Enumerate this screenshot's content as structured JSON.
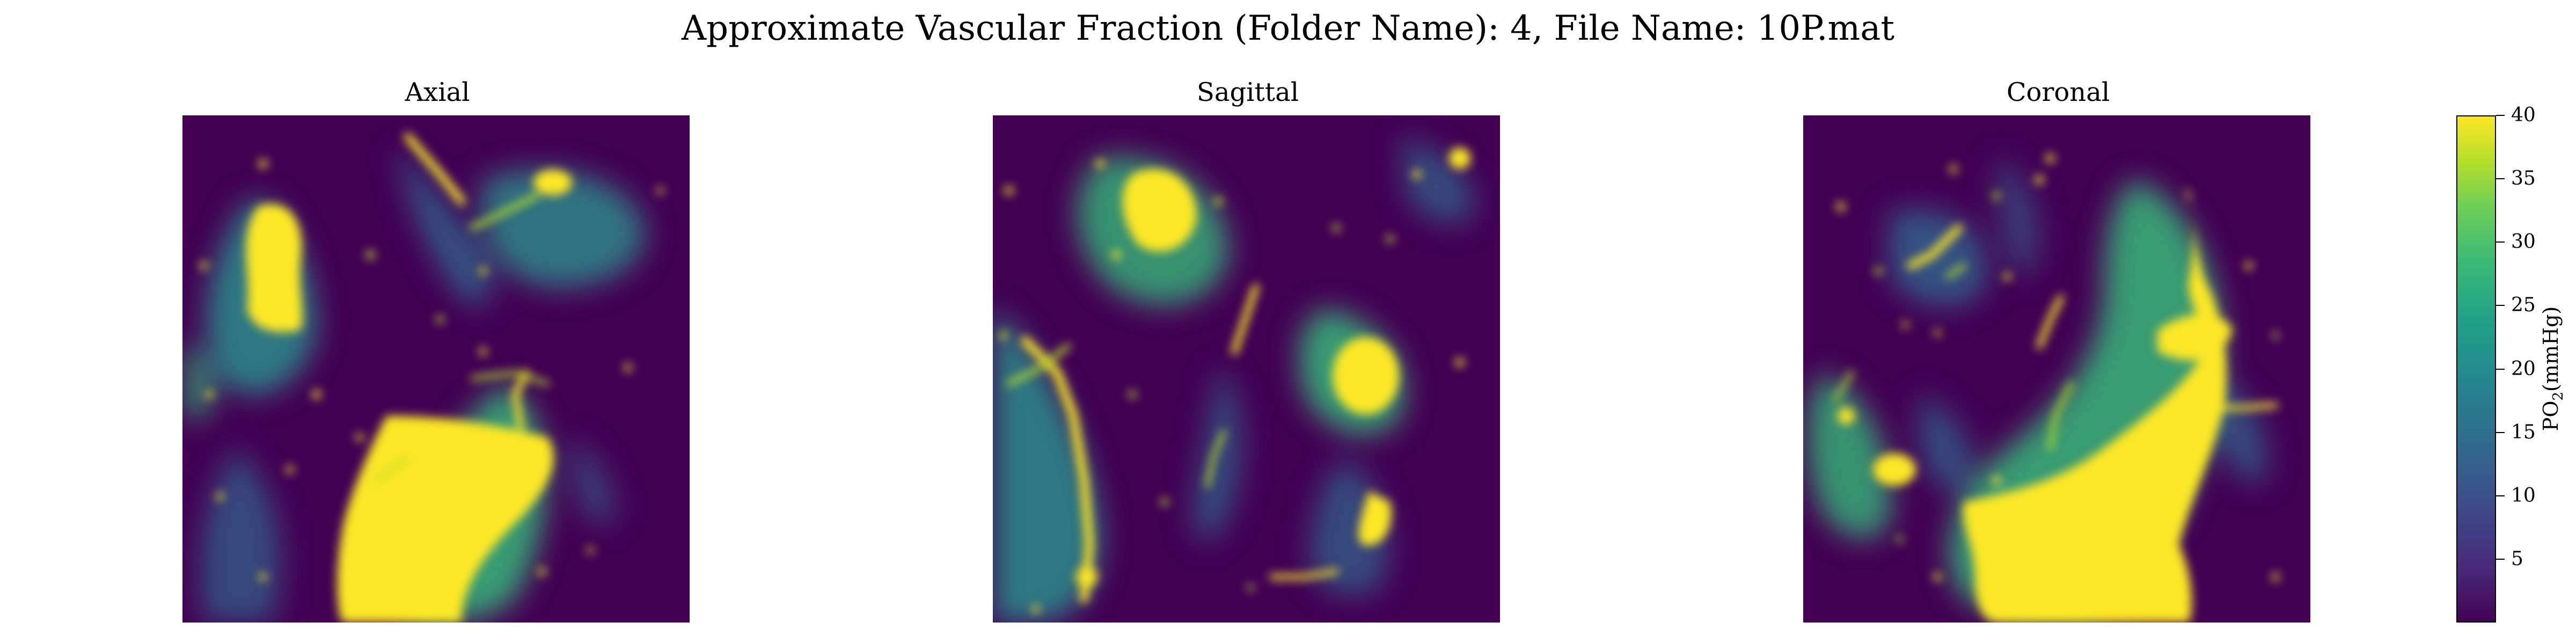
{
  "chart_data": {
    "type": "heatmap",
    "title": "Approximate Vascular Fraction (Folder Name): 4, File Name: 10P.mat",
    "colormap": "viridis",
    "panels": [
      {
        "title": "Axial"
      },
      {
        "title": "Sagittal"
      },
      {
        "title": "Coronal"
      }
    ],
    "colorbar": {
      "label_main": "PO",
      "label_sub": "2",
      "label_unit": "(mmHg)",
      "range": [
        0,
        40
      ],
      "ticks": [
        5,
        10,
        15,
        20,
        25,
        30,
        35,
        40
      ],
      "tick_labels": [
        "5",
        "10",
        "15",
        "20",
        "25",
        "30",
        "35",
        "40"
      ]
    },
    "axes_visible": false
  }
}
